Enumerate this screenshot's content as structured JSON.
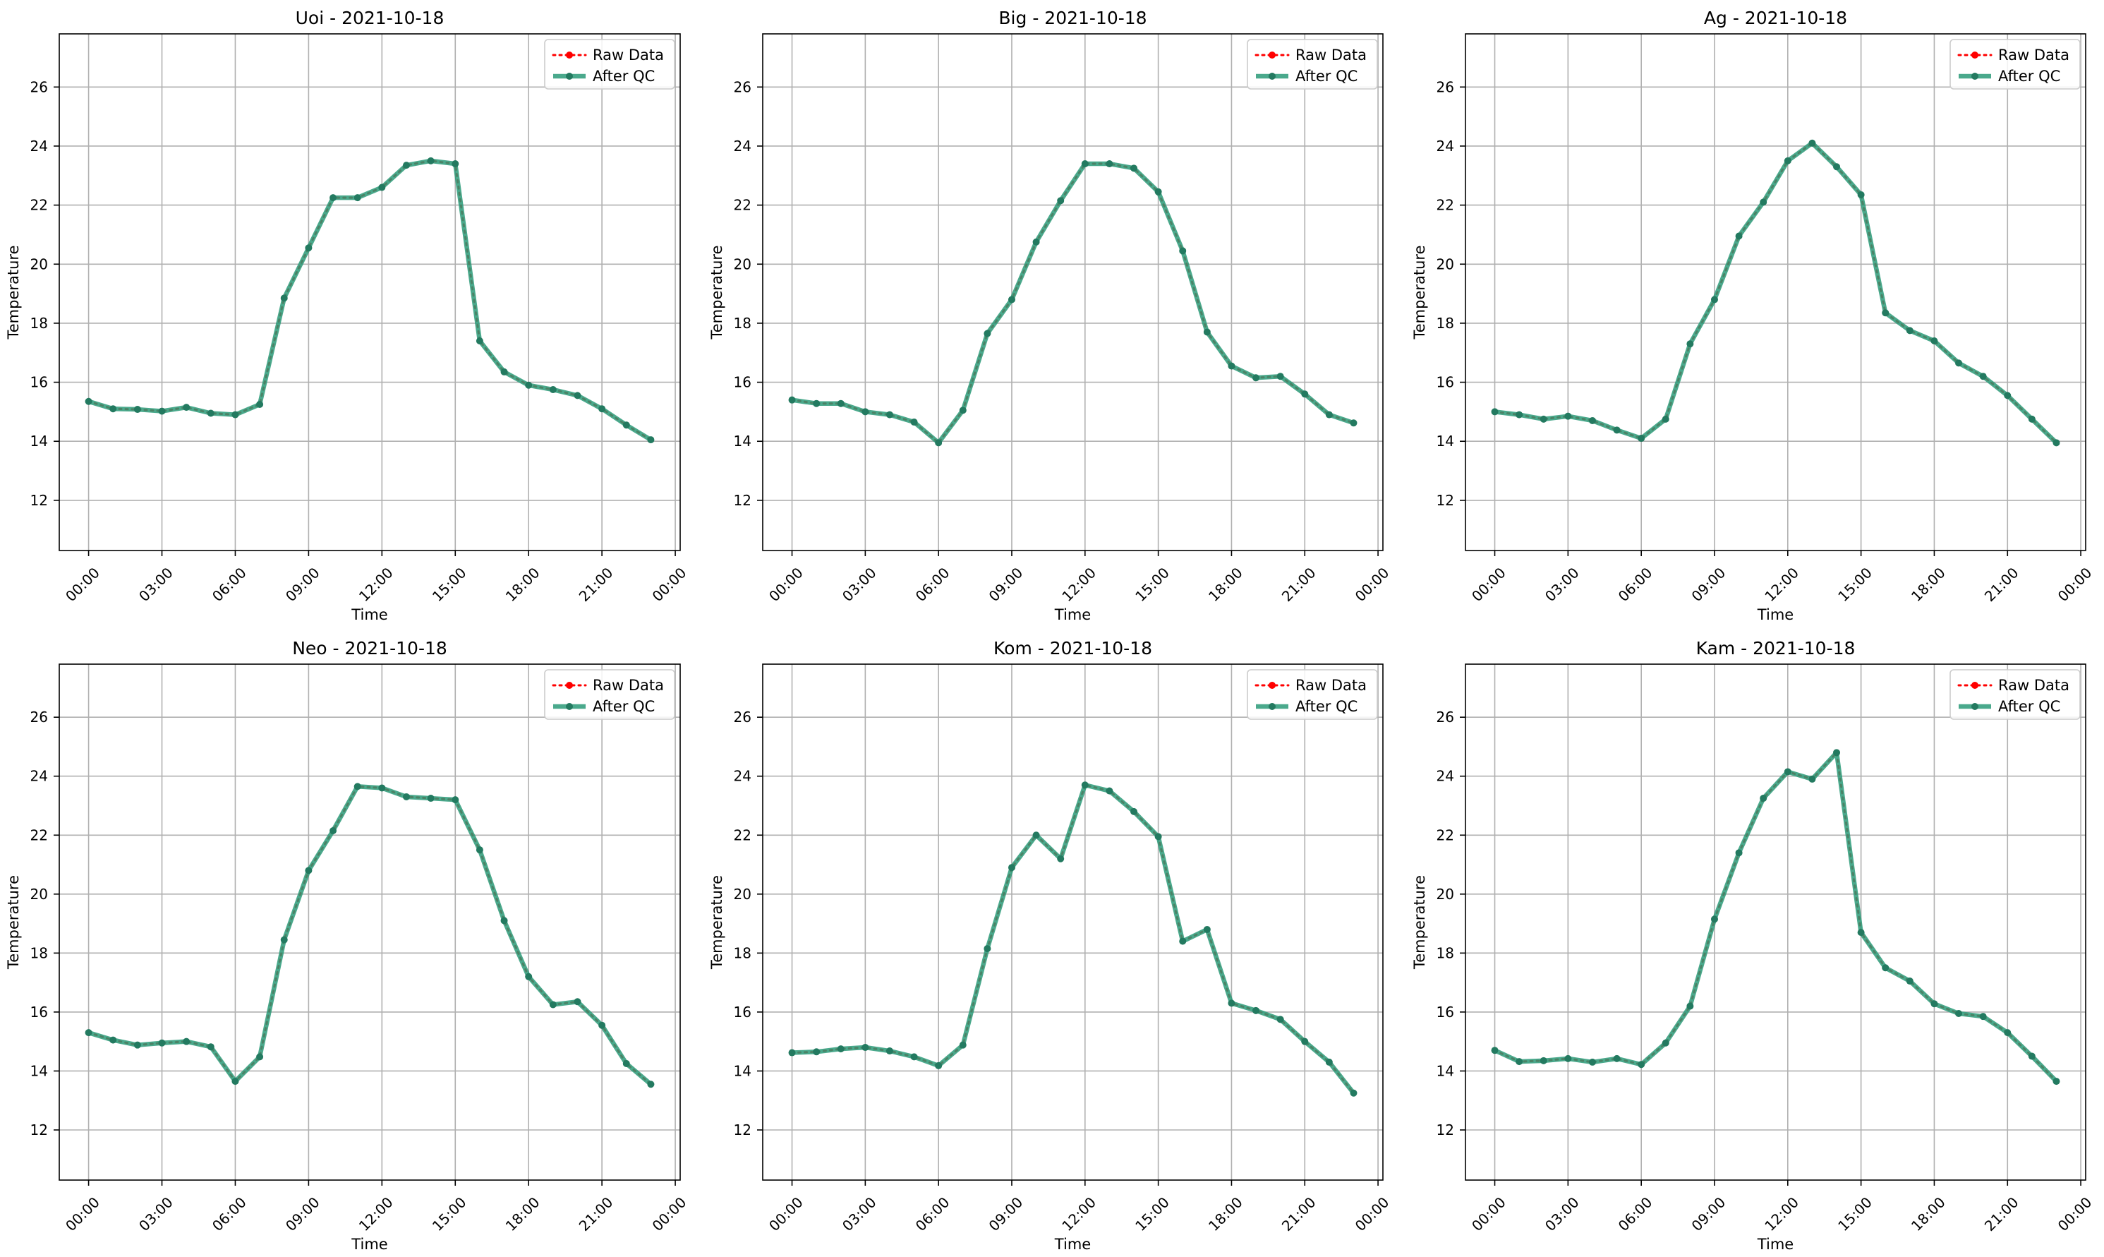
{
  "figure": {
    "colors": {
      "raw": "#ff0000",
      "qc": "#2a9a78",
      "qc_marker": "#237a60",
      "grid": "#b0b0b0",
      "frame": "#000000",
      "legend_border": "#cccccc"
    },
    "legend": {
      "raw_label": "Raw Data",
      "qc_label": "After QC",
      "placement": "top-right"
    }
  },
  "chart_data": [
    {
      "type": "line",
      "title": "Uoi - 2021-10-18",
      "xlabel": "Time",
      "ylabel": "Temperature",
      "xlim_hours": [
        -1.2,
        24.2
      ],
      "ylim": [
        10.3,
        27.8
      ],
      "x_ticks": [
        "00:00",
        "03:00",
        "06:00",
        "09:00",
        "12:00",
        "15:00",
        "18:00",
        "21:00",
        "00:00"
      ],
      "y_ticks": [
        12,
        14,
        16,
        18,
        20,
        22,
        24,
        26
      ],
      "grid": true,
      "x_hours": [
        0,
        1,
        2,
        3,
        4,
        5,
        6,
        7,
        8,
        9,
        10,
        11,
        12,
        13,
        14,
        15,
        16,
        17,
        18,
        19,
        20,
        21,
        22,
        23
      ],
      "series": [
        {
          "name": "Raw Data",
          "values": [
            15.35,
            15.1,
            15.08,
            15.02,
            15.15,
            14.95,
            14.9,
            15.25,
            18.85,
            20.55,
            22.25,
            22.25,
            22.6,
            23.35,
            23.5,
            23.4,
            17.4,
            16.35,
            15.9,
            15.75,
            15.55,
            15.1,
            14.55,
            14.05
          ]
        },
        {
          "name": "After QC",
          "values": [
            15.35,
            15.1,
            15.08,
            15.02,
            15.15,
            14.95,
            14.9,
            15.25,
            18.85,
            20.55,
            22.25,
            22.25,
            22.6,
            23.35,
            23.5,
            23.4,
            17.4,
            16.35,
            15.9,
            15.75,
            15.55,
            15.1,
            14.55,
            14.05
          ]
        }
      ]
    },
    {
      "type": "line",
      "title": "Big - 2021-10-18",
      "xlabel": "Time",
      "ylabel": "Temperature",
      "xlim_hours": [
        -1.2,
        24.2
      ],
      "ylim": [
        10.3,
        27.8
      ],
      "x_ticks": [
        "00:00",
        "03:00",
        "06:00",
        "09:00",
        "12:00",
        "15:00",
        "18:00",
        "21:00",
        "00:00"
      ],
      "y_ticks": [
        12,
        14,
        16,
        18,
        20,
        22,
        24,
        26
      ],
      "grid": true,
      "x_hours": [
        0,
        1,
        2,
        3,
        4,
        5,
        6,
        7,
        8,
        9,
        10,
        11,
        12,
        13,
        14,
        15,
        16,
        17,
        18,
        19,
        20,
        21,
        22,
        23
      ],
      "series": [
        {
          "name": "Raw Data",
          "values": [
            15.4,
            15.28,
            15.28,
            15.0,
            14.9,
            14.65,
            13.95,
            15.05,
            17.65,
            18.8,
            20.75,
            22.15,
            23.4,
            23.4,
            23.25,
            22.45,
            20.45,
            17.7,
            16.55,
            16.15,
            16.2,
            15.6,
            14.9,
            14.62
          ]
        },
        {
          "name": "After QC",
          "values": [
            15.4,
            15.28,
            15.28,
            15.0,
            14.9,
            14.65,
            13.95,
            15.05,
            17.65,
            18.8,
            20.75,
            22.15,
            23.4,
            23.4,
            23.25,
            22.45,
            20.45,
            17.7,
            16.55,
            16.15,
            16.2,
            15.6,
            14.9,
            14.62
          ]
        }
      ]
    },
    {
      "type": "line",
      "title": "Ag - 2021-10-18",
      "xlabel": "Time",
      "ylabel": "Temperature",
      "xlim_hours": [
        -1.2,
        24.2
      ],
      "ylim": [
        10.3,
        27.8
      ],
      "x_ticks": [
        "00:00",
        "03:00",
        "06:00",
        "09:00",
        "12:00",
        "15:00",
        "18:00",
        "21:00",
        "00:00"
      ],
      "y_ticks": [
        12,
        14,
        16,
        18,
        20,
        22,
        24,
        26
      ],
      "grid": true,
      "x_hours": [
        0,
        1,
        2,
        3,
        4,
        5,
        6,
        7,
        8,
        9,
        10,
        11,
        12,
        13,
        14,
        15,
        16,
        17,
        18,
        19,
        20,
        21,
        22,
        23
      ],
      "series": [
        {
          "name": "Raw Data",
          "values": [
            15.0,
            14.9,
            14.75,
            14.85,
            14.7,
            14.38,
            14.1,
            14.75,
            17.3,
            18.8,
            20.95,
            22.1,
            23.5,
            24.1,
            23.3,
            22.35,
            18.35,
            17.75,
            17.4,
            16.65,
            16.2,
            15.55,
            14.75,
            13.95
          ]
        },
        {
          "name": "After QC",
          "values": [
            15.0,
            14.9,
            14.75,
            14.85,
            14.7,
            14.38,
            14.1,
            14.75,
            17.3,
            18.8,
            20.95,
            22.1,
            23.5,
            24.1,
            23.3,
            22.35,
            18.35,
            17.75,
            17.4,
            16.65,
            16.2,
            15.55,
            14.75,
            13.95
          ]
        }
      ]
    },
    {
      "type": "line",
      "title": "Neo - 2021-10-18",
      "xlabel": "Time",
      "ylabel": "Temperature",
      "xlim_hours": [
        -1.2,
        24.2
      ],
      "ylim": [
        10.3,
        27.8
      ],
      "x_ticks": [
        "00:00",
        "03:00",
        "06:00",
        "09:00",
        "12:00",
        "15:00",
        "18:00",
        "21:00",
        "00:00"
      ],
      "y_ticks": [
        12,
        14,
        16,
        18,
        20,
        22,
        24,
        26
      ],
      "grid": true,
      "x_hours": [
        0,
        1,
        2,
        3,
        4,
        5,
        6,
        7,
        8,
        9,
        10,
        11,
        12,
        13,
        14,
        15,
        16,
        17,
        18,
        19,
        20,
        21,
        22,
        23
      ],
      "series": [
        {
          "name": "Raw Data",
          "values": [
            15.3,
            15.05,
            14.88,
            14.95,
            15.0,
            14.82,
            13.65,
            14.48,
            18.45,
            20.8,
            22.15,
            23.65,
            23.6,
            23.3,
            23.25,
            23.2,
            21.5,
            19.1,
            17.2,
            16.25,
            16.35,
            15.55,
            14.25,
            13.55
          ]
        },
        {
          "name": "After QC",
          "values": [
            15.3,
            15.05,
            14.88,
            14.95,
            15.0,
            14.82,
            13.65,
            14.48,
            18.45,
            20.8,
            22.15,
            23.65,
            23.6,
            23.3,
            23.25,
            23.2,
            21.5,
            19.1,
            17.2,
            16.25,
            16.35,
            15.55,
            14.25,
            13.55
          ]
        }
      ]
    },
    {
      "type": "line",
      "title": "Kom - 2021-10-18",
      "xlabel": "Time",
      "ylabel": "Temperature",
      "xlim_hours": [
        -1.2,
        24.2
      ],
      "ylim": [
        10.3,
        27.8
      ],
      "x_ticks": [
        "00:00",
        "03:00",
        "06:00",
        "09:00",
        "12:00",
        "15:00",
        "18:00",
        "21:00",
        "00:00"
      ],
      "y_ticks": [
        12,
        14,
        16,
        18,
        20,
        22,
        24,
        26
      ],
      "grid": true,
      "x_hours": [
        0,
        1,
        2,
        3,
        4,
        5,
        6,
        7,
        8,
        9,
        10,
        11,
        12,
        13,
        14,
        15,
        16,
        17,
        18,
        19,
        20,
        21,
        22,
        23
      ],
      "series": [
        {
          "name": "Raw Data",
          "values": [
            14.62,
            14.65,
            14.75,
            14.8,
            14.68,
            14.48,
            14.18,
            14.88,
            18.15,
            20.9,
            22.0,
            21.2,
            23.7,
            23.5,
            22.8,
            21.95,
            18.4,
            18.8,
            16.3,
            16.05,
            15.75,
            15.0,
            14.3,
            13.25
          ]
        },
        {
          "name": "After QC",
          "values": [
            14.62,
            14.65,
            14.75,
            14.8,
            14.68,
            14.48,
            14.18,
            14.88,
            18.15,
            20.9,
            22.0,
            21.2,
            23.7,
            23.5,
            22.8,
            21.95,
            18.4,
            18.8,
            16.3,
            16.05,
            15.75,
            15.0,
            14.3,
            13.25
          ]
        }
      ]
    },
    {
      "type": "line",
      "title": "Kam - 2021-10-18",
      "xlabel": "Time",
      "ylabel": "Temperature",
      "xlim_hours": [
        -1.2,
        24.2
      ],
      "ylim": [
        10.3,
        27.8
      ],
      "x_ticks": [
        "00:00",
        "03:00",
        "06:00",
        "09:00",
        "12:00",
        "15:00",
        "18:00",
        "21:00",
        "00:00"
      ],
      "y_ticks": [
        12,
        14,
        16,
        18,
        20,
        22,
        24,
        26
      ],
      "grid": true,
      "x_hours": [
        0,
        1,
        2,
        3,
        4,
        5,
        6,
        7,
        8,
        9,
        10,
        11,
        12,
        13,
        14,
        15,
        16,
        17,
        18,
        19,
        20,
        21,
        22,
        23
      ],
      "series": [
        {
          "name": "Raw Data",
          "values": [
            14.7,
            14.32,
            14.35,
            14.42,
            14.3,
            14.42,
            14.22,
            14.95,
            16.2,
            19.15,
            21.4,
            23.25,
            24.15,
            23.9,
            24.8,
            18.7,
            17.5,
            17.05,
            16.28,
            15.95,
            15.85,
            15.3,
            14.5,
            13.65
          ]
        },
        {
          "name": "After QC",
          "values": [
            14.7,
            14.32,
            14.35,
            14.42,
            14.3,
            14.42,
            14.22,
            14.95,
            16.2,
            19.15,
            21.4,
            23.25,
            24.15,
            23.9,
            24.8,
            18.7,
            17.5,
            17.05,
            16.28,
            15.95,
            15.85,
            15.3,
            14.5,
            13.65
          ]
        }
      ]
    }
  ]
}
